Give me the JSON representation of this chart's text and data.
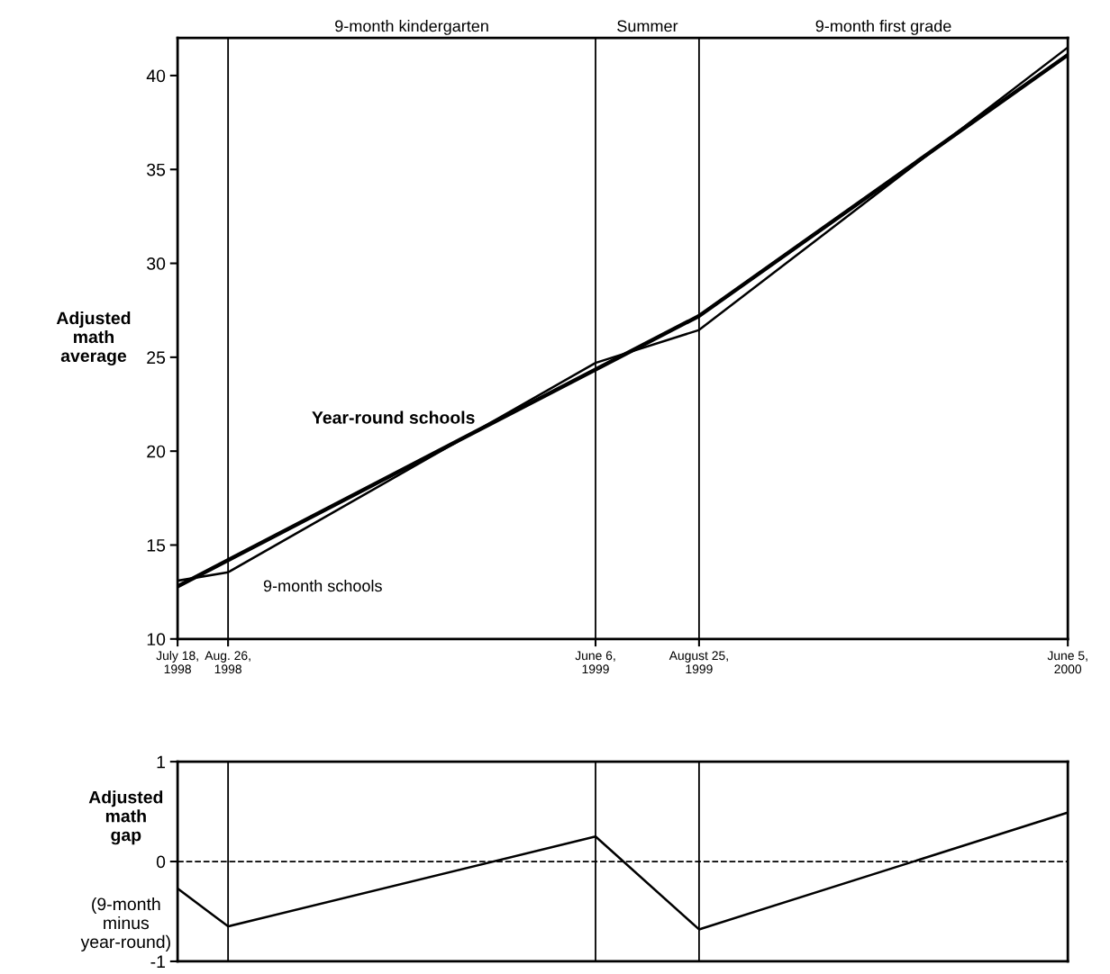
{
  "chart_data": [
    {
      "type": "line",
      "ylabel": "Adjusted\nmath\naverage",
      "x": [
        "1998-07-18",
        "1998-08-26",
        "1999-06-06",
        "1999-08-25",
        "2000-06-05"
      ],
      "series": [
        {
          "name": "Year-round schools",
          "color": "#000000",
          "values": [
            12.8,
            14.2,
            24.35,
            27.2,
            41.1
          ]
        },
        {
          "name": "9-month schools",
          "color": "#000000",
          "values": [
            13.1,
            13.55,
            24.7,
            26.45,
            41.5
          ]
        }
      ],
      "xlim": [
        "1998-07-18",
        "2000-06-05"
      ],
      "xticks": [
        {
          "value": "1998-07-18",
          "label": "July 18,\n1998"
        },
        {
          "value": "1998-08-26",
          "label": "Aug. 26,\n1998"
        },
        {
          "value": "1999-06-06",
          "label": "June 6,\n1999"
        },
        {
          "value": "1999-08-25",
          "label": "August 25,\n1999"
        },
        {
          "value": "2000-06-05",
          "label": "June 5,\n2000"
        }
      ],
      "ylim": [
        10,
        42
      ],
      "yticks": [
        10,
        15,
        20,
        25,
        30,
        35,
        40
      ],
      "ref_lines": [
        {
          "axis": "x",
          "value": "1998-08-26",
          "color": "#000000"
        },
        {
          "axis": "x",
          "value": "1999-06-06",
          "color": "#000000"
        },
        {
          "axis": "x",
          "value": "1999-08-25",
          "color": "#000000"
        }
      ],
      "annotations": [
        "9-month kindergarten",
        "Summer",
        "9-month first grade"
      ],
      "grid": false,
      "legend": false,
      "marker": "none",
      "line_style": "solid"
    },
    {
      "type": "line",
      "ylabel": "Adjusted\nmath\ngap",
      "annotations": [
        "(9-month\nminus\nyear-round)"
      ],
      "x": [
        "1998-07-18",
        "1998-08-26",
        "1999-06-06",
        "1999-08-25",
        "2000-06-05"
      ],
      "series": [
        {
          "color": "#000000",
          "values": [
            -0.27,
            -0.65,
            0.25,
            -0.68,
            0.49
          ]
        }
      ],
      "xlim": [
        "1998-07-18",
        "2000-06-05"
      ],
      "ylim": [
        -1,
        1
      ],
      "yticks": [
        {
          "value": -1,
          "label": "-1"
        },
        0,
        1
      ],
      "ref_lines": [
        {
          "axis": "y",
          "value": 0,
          "color": "#000000",
          "line_style": "dashed"
        },
        {
          "axis": "x",
          "value": "1998-08-26",
          "color": "#000000"
        },
        {
          "axis": "x",
          "value": "1999-06-06",
          "color": "#000000"
        },
        {
          "axis": "x",
          "value": "1999-08-25",
          "color": "#000000"
        }
      ],
      "tick_labels": "y",
      "grid": false,
      "legend": false,
      "marker": "none",
      "line_style": "solid"
    }
  ]
}
